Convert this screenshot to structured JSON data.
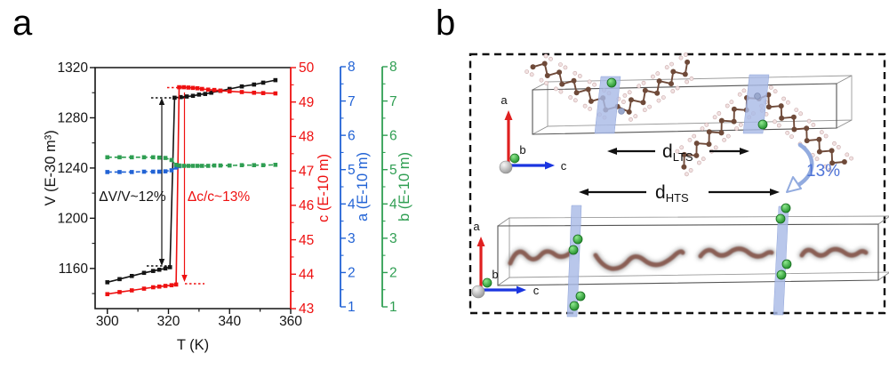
{
  "panels": {
    "a": {
      "letter": "a"
    },
    "b": {
      "letter": "b"
    }
  },
  "chart_data": {
    "type": "line",
    "title": "",
    "xlabel": "T (K)",
    "x_range": [
      296,
      360
    ],
    "x_ticks": [
      300,
      320,
      340,
      360
    ],
    "grid": false,
    "legend": "none",
    "axes": [
      {
        "id": "V",
        "label": "V (E-30 m³)",
        "color": "#141414",
        "range": [
          1128,
          1320
        ],
        "ticks": [
          1160,
          1200,
          1240,
          1280,
          1320
        ],
        "side": "left"
      },
      {
        "id": "c",
        "label": "c (E-10 m)",
        "color": "#ee1111",
        "range": [
          43,
          50
        ],
        "ticks": [
          43,
          44,
          45,
          46,
          47,
          48,
          49,
          50
        ],
        "side": "right"
      },
      {
        "id": "a",
        "label": "a (E-10 m)",
        "color": "#2263d5",
        "range": [
          1,
          8
        ],
        "ticks": [
          1,
          2,
          3,
          4,
          5,
          6,
          7,
          8
        ],
        "side": "right-offset-1"
      },
      {
        "id": "b",
        "label": "b (E-10 m)",
        "color": "#2f9e52",
        "range": [
          1,
          8
        ],
        "ticks": [
          1,
          2,
          3,
          4,
          5,
          6,
          7,
          8
        ],
        "side": "right-offset-2"
      }
    ],
    "series": [
      {
        "name": "V",
        "axis": "V",
        "color": "#141414",
        "dashed": false,
        "points": [
          [
            300,
            1149
          ],
          [
            304,
            1151.5
          ],
          [
            308,
            1154
          ],
          [
            312,
            1156.5
          ],
          [
            315,
            1158
          ],
          [
            317,
            1159
          ],
          [
            319,
            1160
          ],
          [
            320.5,
            1161
          ],
          [
            322,
            1296
          ],
          [
            324,
            1296.5
          ],
          [
            326,
            1297
          ],
          [
            328,
            1297.5
          ],
          [
            330,
            1298.5
          ],
          [
            332,
            1299
          ],
          [
            334,
            1300
          ],
          [
            337,
            1301.5
          ],
          [
            340,
            1303
          ],
          [
            344,
            1305
          ],
          [
            348,
            1306.5
          ],
          [
            351,
            1308
          ],
          [
            355,
            1310
          ]
        ]
      },
      {
        "name": "c",
        "axis": "c",
        "color": "#ee1111",
        "dashed": false,
        "points": [
          [
            300,
            43.42
          ],
          [
            304,
            43.48
          ],
          [
            308,
            43.53
          ],
          [
            312,
            43.58
          ],
          [
            315,
            43.62
          ],
          [
            317,
            43.64
          ],
          [
            319,
            43.66
          ],
          [
            321,
            43.68
          ],
          [
            322.5,
            43.7
          ],
          [
            323.5,
            49.43
          ],
          [
            325,
            49.43
          ],
          [
            326.5,
            49.42
          ],
          [
            328,
            49.41
          ],
          [
            329.5,
            49.4
          ],
          [
            331,
            49.38
          ],
          [
            333,
            49.36
          ],
          [
            335,
            49.35
          ],
          [
            337,
            49.33
          ],
          [
            340,
            49.31
          ],
          [
            344,
            49.29
          ],
          [
            348,
            49.27
          ],
          [
            351,
            49.26
          ],
          [
            355,
            49.25
          ]
        ]
      },
      {
        "name": "a",
        "axis": "a",
        "color": "#2263d5",
        "dashed": true,
        "points": [
          [
            300,
            4.93
          ],
          [
            304,
            4.93
          ],
          [
            308,
            4.93
          ],
          [
            312,
            4.94
          ],
          [
            315,
            4.94
          ],
          [
            317,
            4.94
          ],
          [
            319,
            4.95
          ],
          [
            321,
            4.98
          ],
          [
            322.5,
            5.06
          ],
          [
            323.5,
            5.1
          ]
        ]
      },
      {
        "name": "b",
        "axis": "b",
        "color": "#2f9e52",
        "dashed": true,
        "points": [
          [
            300,
            5.36
          ],
          [
            304,
            5.36
          ],
          [
            308,
            5.36
          ],
          [
            312,
            5.36
          ],
          [
            315,
            5.36
          ],
          [
            317,
            5.35
          ],
          [
            319,
            5.34
          ],
          [
            321,
            5.28
          ],
          [
            322.5,
            5.14
          ],
          [
            323.5,
            5.12
          ],
          [
            325,
            5.11
          ],
          [
            326.5,
            5.11
          ],
          [
            328,
            5.11
          ],
          [
            329.5,
            5.11
          ],
          [
            331,
            5.11
          ],
          [
            333,
            5.11
          ],
          [
            335,
            5.12
          ],
          [
            337,
            5.12
          ],
          [
            340,
            5.12
          ],
          [
            344,
            5.13
          ],
          [
            348,
            5.13
          ],
          [
            351,
            5.13
          ],
          [
            355,
            5.14
          ]
        ]
      }
    ],
    "annotations": {
      "dv": {
        "text": "ΔV/V~12%",
        "color": "#141414"
      },
      "dc": {
        "text": "Δc/c~13%",
        "color": "#ee1111"
      }
    }
  },
  "panel_b": {
    "d_lts": {
      "main": "d",
      "sub": "LTS"
    },
    "d_hts": {
      "main": "d",
      "sub": "HTS"
    },
    "pct": "13%",
    "triad": {
      "a": "a",
      "b": "b",
      "c": "c"
    },
    "colors": {
      "plane": "#a9bbe6",
      "carbon": "#6f4a39",
      "hydrogen": "#f2e2e2",
      "nitrogen": "#9aa8cc",
      "green_atom": "#2fa33a",
      "axis_a": "#e02020",
      "axis_c": "#1a35e0",
      "squiggle": "#8a5f55",
      "pct_text": "#4f74d8",
      "curved_arrow": "#92abdf"
    }
  }
}
